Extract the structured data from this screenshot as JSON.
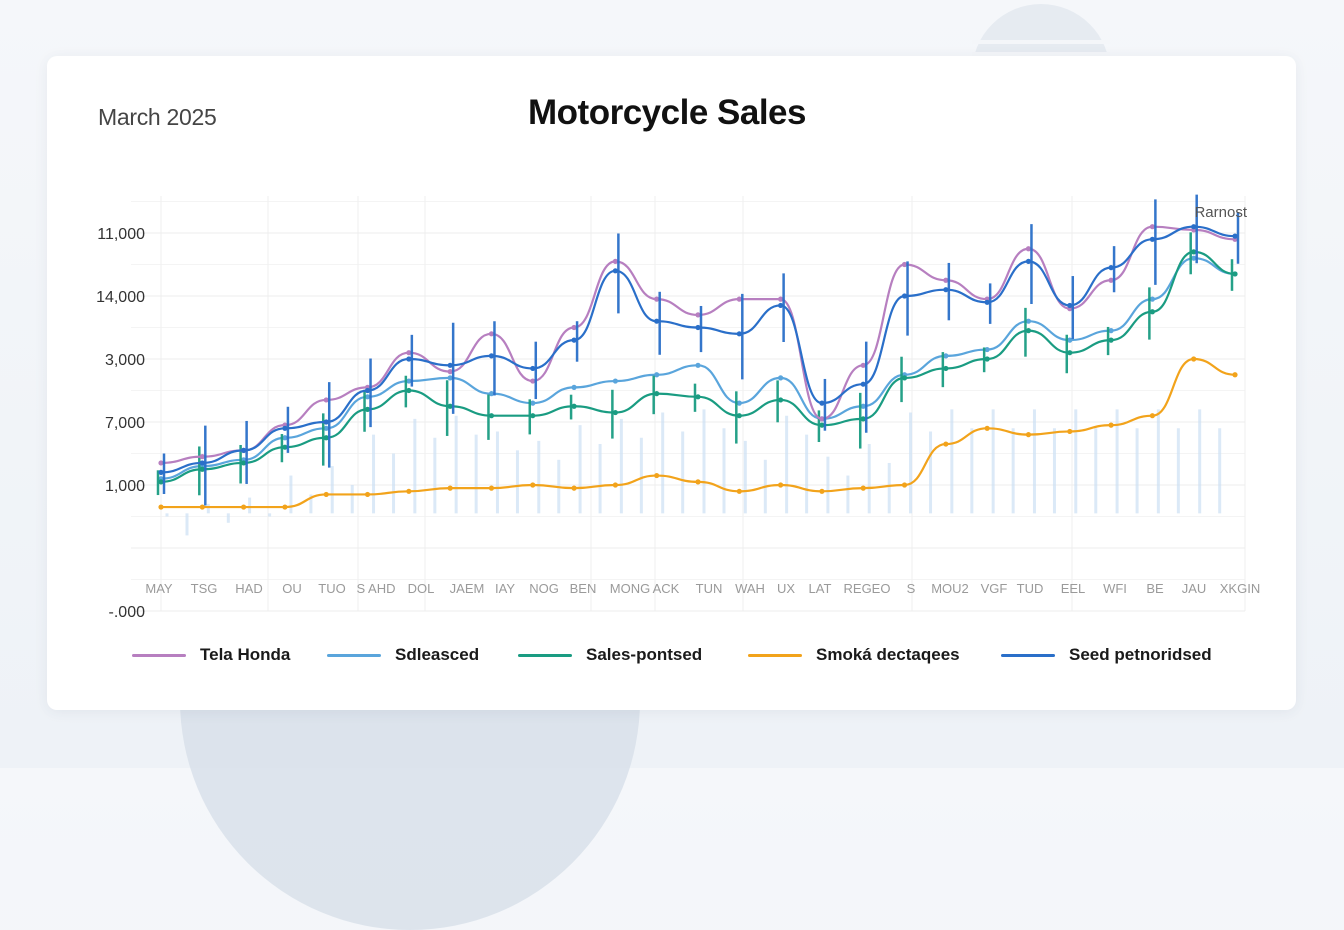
{
  "header": {
    "date_label": "March 2025",
    "title": "Motorcycle Sales"
  },
  "chart_data": {
    "type": "line",
    "title": "Motorcycle Sales",
    "subtitle": "March 2025",
    "annotation": "Rarnost",
    "xlabel": "",
    "ylabel": "",
    "grid": true,
    "legend_position": "bottom",
    "y_scale_note": "values expressed in tick-index units: 0 = '-.000', 1 = (unlabeled axis line), 2 = '1,000', 3 = '7,000', 4 = '3,000', 5 = '14,000', 6 = '11,000'",
    "y_ticks": [
      {
        "value": 0,
        "label": "-.000"
      },
      {
        "value": 2,
        "label": "1,000"
      },
      {
        "value": 3,
        "label": "7,000"
      },
      {
        "value": 4,
        "label": "3,000"
      },
      {
        "value": 5,
        "label": "14,000"
      },
      {
        "value": 6,
        "label": "11,000"
      }
    ],
    "ylim": [
      0,
      6.6
    ],
    "categories": [
      "MAY",
      "TSG",
      "HAD",
      "OU",
      "TUO",
      "S AHD",
      "DOL",
      "JAEM",
      "IAY",
      "NOG",
      "BEN",
      "MONG",
      "ACK",
      "TUN",
      "WAH",
      "UX",
      "LAT",
      "REGEO",
      "S",
      "MOU2",
      "VGF",
      "TUD",
      "EEL",
      "WFI",
      "BE",
      "JAU",
      "XKGIN"
    ],
    "series": [
      {
        "name": "Tela Honda",
        "color": "#b77fc0",
        "values": [
          2.35,
          2.45,
          2.55,
          2.95,
          3.35,
          3.55,
          4.1,
          3.8,
          4.4,
          3.65,
          4.5,
          5.55,
          4.95,
          4.7,
          4.95,
          4.95,
          3.05,
          3.9,
          5.5,
          5.25,
          4.95,
          5.75,
          4.8,
          5.25,
          6.1,
          6.05,
          5.9
        ]
      },
      {
        "name": "Sdleasced",
        "color": "#5aa5dc",
        "values": [
          2.1,
          2.3,
          2.4,
          2.75,
          2.9,
          3.4,
          3.65,
          3.7,
          3.45,
          3.3,
          3.55,
          3.65,
          3.75,
          3.9,
          3.3,
          3.7,
          3.05,
          3.25,
          3.75,
          4.05,
          4.15,
          4.6,
          4.3,
          4.45,
          4.95,
          5.6,
          5.35
        ]
      },
      {
        "name": "Sales-pontsed",
        "color": "#1a9c82",
        "values": [
          2.05,
          2.25,
          2.35,
          2.6,
          2.75,
          3.2,
          3.5,
          3.25,
          3.1,
          3.1,
          3.25,
          3.15,
          3.45,
          3.4,
          3.1,
          3.35,
          2.95,
          3.05,
          3.7,
          3.85,
          4.0,
          4.45,
          4.1,
          4.3,
          4.75,
          5.7,
          5.35
        ]
      },
      {
        "name": "Smoka dectaqees",
        "color": "#f2a31b",
        "values": [
          1.65,
          1.65,
          1.65,
          1.65,
          1.85,
          1.85,
          1.9,
          1.95,
          1.95,
          2.0,
          1.95,
          2.0,
          2.15,
          2.05,
          1.9,
          2.0,
          1.9,
          1.95,
          2.0,
          2.65,
          2.9,
          2.8,
          2.85,
          2.95,
          3.1,
          4.0,
          3.75
        ]
      },
      {
        "name": "Seed petnoridsed",
        "color": "#2a6fc9",
        "values": [
          2.2,
          2.35,
          2.55,
          2.9,
          3.0,
          3.5,
          4.0,
          3.9,
          4.05,
          3.85,
          4.3,
          5.4,
          4.6,
          4.5,
          4.4,
          4.85,
          3.3,
          3.6,
          5.0,
          5.1,
          4.9,
          5.55,
          4.85,
          5.45,
          5.9,
          6.1,
          5.95
        ]
      }
    ]
  },
  "legend": {
    "items": [
      {
        "label": "Tela Honda",
        "color": "#b77fc0"
      },
      {
        "label": "Sdleasced",
        "color": "#5aa5dc"
      },
      {
        "label": "Sales-pontsed",
        "color": "#1a9c82"
      },
      {
        "label": "Smoká dectaqees",
        "color": "#f2a31b"
      },
      {
        "label": "Seed petnoridsed",
        "color": "#2a6fc9"
      }
    ]
  }
}
